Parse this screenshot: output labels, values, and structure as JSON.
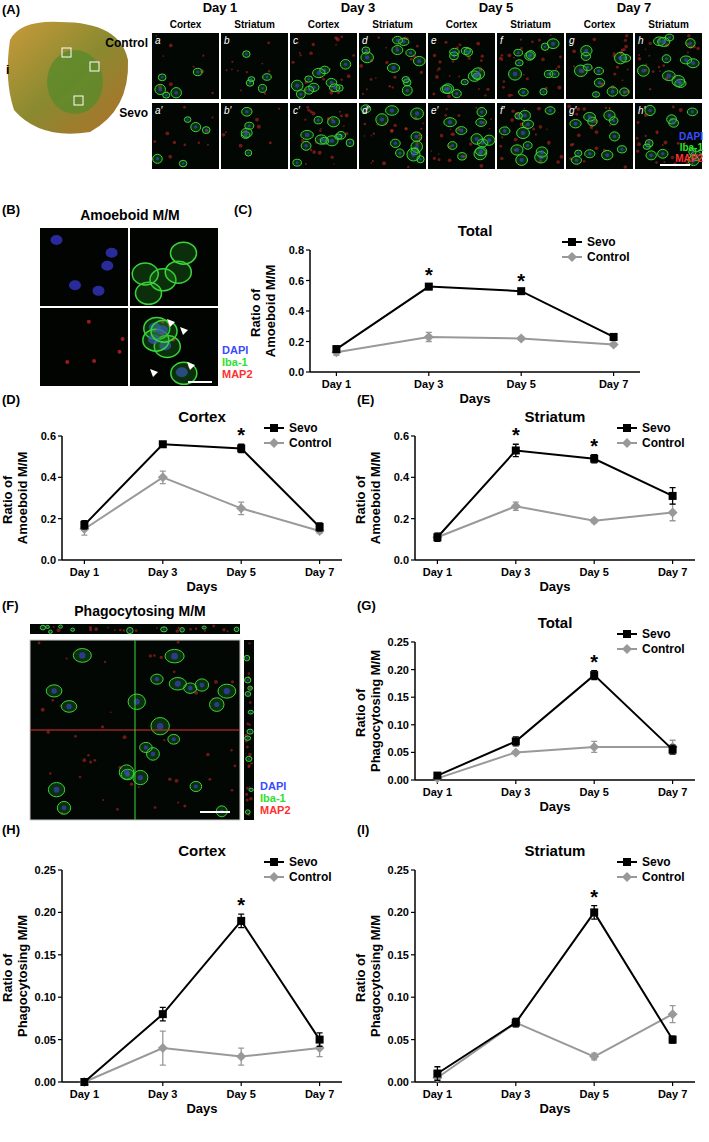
{
  "chart_data": [
    {
      "panel_label": "(C)",
      "type": "line",
      "title": "Total",
      "x_label": "Days",
      "y_label": "Ratio of Amoeboid M/M",
      "categories": [
        "Day 1",
        "Day 3",
        "Day 5",
        "Day 7"
      ],
      "ylim": [
        0,
        0.8
      ],
      "yticks": [
        {
          "value": 0,
          "label": "0.0"
        },
        0.2,
        0.4,
        0.6,
        0.8
      ],
      "legend": "top-right",
      "series": [
        {
          "name": "Sevo",
          "color": "#000000",
          "marker": "square",
          "values": [
            0.15,
            0.56,
            0.53,
            0.23
          ],
          "errors": [
            0.02,
            0.02,
            0.01,
            0.02
          ]
        },
        {
          "name": "Control",
          "color": "#999999",
          "marker": "diamond",
          "values": [
            0.13,
            0.23,
            0.22,
            0.18
          ],
          "errors": [
            0.02,
            0.03,
            0.01,
            0.01
          ]
        }
      ],
      "annotations": [
        {
          "x": "Day 3",
          "text": "*"
        },
        {
          "x": "Day 5",
          "text": "*"
        }
      ]
    },
    {
      "panel_label": "(D)",
      "type": "line",
      "title": "Cortex",
      "x_label": "Days",
      "y_label": "Ratio of Amoeboid M/M",
      "categories": [
        "Day 1",
        "Day 3",
        "Day 5",
        "Day 7"
      ],
      "ylim": [
        0,
        0.6
      ],
      "yticks": [
        {
          "value": 0,
          "label": "0.0"
        },
        0.2,
        0.4,
        0.6
      ],
      "legend": "top-right",
      "series": [
        {
          "name": "Sevo",
          "color": "#000000",
          "marker": "square",
          "values": [
            0.17,
            0.56,
            0.54,
            0.16
          ],
          "errors": [
            0.02,
            0.01,
            0.02,
            0.02
          ]
        },
        {
          "name": "Control",
          "color": "#999999",
          "marker": "diamond",
          "values": [
            0.15,
            0.4,
            0.25,
            0.14
          ],
          "errors": [
            0.03,
            0.03,
            0.03,
            0.01
          ]
        }
      ],
      "annotations": [
        {
          "x": "Day 5",
          "text": "*"
        }
      ]
    },
    {
      "panel_label": "(E)",
      "type": "line",
      "title": "Striatum",
      "x_label": "Days",
      "y_label": "Ratio of Amoeboid M/M",
      "categories": [
        "Day 1",
        "Day 3",
        "Day 5",
        "Day 7"
      ],
      "ylim": [
        0,
        0.6
      ],
      "yticks": [
        {
          "value": 0,
          "label": "0.0"
        },
        0.2,
        0.4,
        0.6
      ],
      "legend": "top-right",
      "series": [
        {
          "name": "Sevo",
          "color": "#000000",
          "marker": "square",
          "values": [
            0.11,
            0.53,
            0.49,
            0.31
          ],
          "errors": [
            0.02,
            0.03,
            0.02,
            0.04
          ]
        },
        {
          "name": "Control",
          "color": "#999999",
          "marker": "diamond",
          "values": [
            0.11,
            0.26,
            0.19,
            0.23
          ],
          "errors": [
            0.02,
            0.02,
            0.01,
            0.04
          ]
        }
      ],
      "annotations": [
        {
          "x": "Day 3",
          "text": "*"
        },
        {
          "x": "Day 5",
          "text": "*"
        }
      ]
    },
    {
      "panel_label": "(G)",
      "type": "line",
      "title": "Total",
      "x_label": "Days",
      "y_label": "Ratio of Phagocytosing M/M",
      "categories": [
        "Day 1",
        "Day 3",
        "Day 5",
        "Day 7"
      ],
      "ylim": [
        0,
        0.25
      ],
      "yticks": [
        {
          "value": 0,
          "label": "0.00"
        },
        0.05,
        {
          "value": 0.1,
          "label": "0.10"
        },
        0.15,
        {
          "value": 0.2,
          "label": "0.20"
        },
        0.25
      ],
      "legend": "top-right",
      "series": [
        {
          "name": "Sevo",
          "color": "#000000",
          "marker": "square",
          "values": [
            0.008,
            0.07,
            0.19,
            0.055
          ],
          "errors": [
            0.003,
            0.008,
            0.008,
            0.008
          ]
        },
        {
          "name": "Control",
          "color": "#999999",
          "marker": "diamond",
          "values": [
            0.003,
            0.05,
            0.06,
            0.06
          ],
          "errors": [
            0.002,
            0.003,
            0.01,
            0.012
          ]
        }
      ],
      "annotations": [
        {
          "x": "Day 5",
          "text": "*"
        }
      ]
    },
    {
      "panel_label": "(H)",
      "type": "line",
      "title": "Cortex",
      "x_label": "Days",
      "y_label": "Ratio of Phagocytosing M/M",
      "categories": [
        "Day 1",
        "Day 3",
        "Day 5",
        "Day 7"
      ],
      "ylim": [
        0,
        0.25
      ],
      "yticks": [
        {
          "value": 0,
          "label": "0.00"
        },
        0.05,
        {
          "value": 0.1,
          "label": "0.10"
        },
        0.15,
        {
          "value": 0.2,
          "label": "0.20"
        },
        0.25
      ],
      "legend": "top-right",
      "series": [
        {
          "name": "Sevo",
          "color": "#000000",
          "marker": "square",
          "values": [
            0,
            0.08,
            0.19,
            0.05
          ],
          "errors": [
            0.002,
            0.008,
            0.008,
            0.008
          ]
        },
        {
          "name": "Control",
          "color": "#999999",
          "marker": "diamond",
          "values": [
            0,
            0.04,
            0.03,
            0.04
          ],
          "errors": [
            0.002,
            0.02,
            0.01,
            0.01
          ]
        }
      ],
      "annotations": [
        {
          "x": "Day 5",
          "text": "*"
        }
      ]
    },
    {
      "panel_label": "(I)",
      "type": "line",
      "title": "Striatum",
      "x_label": "Days",
      "y_label": "Ratio of Phagocytosing M/M",
      "categories": [
        "Day 1",
        "Day 3",
        "Day 5",
        "Day 7"
      ],
      "ylim": [
        0,
        0.25
      ],
      "yticks": [
        {
          "value": 0,
          "label": "0.00"
        },
        0.05,
        {
          "value": 0.1,
          "label": "0.10"
        },
        0.15,
        {
          "value": 0.2,
          "label": "0.20"
        },
        0.25
      ],
      "legend": "top-right",
      "series": [
        {
          "name": "Sevo",
          "color": "#000000",
          "marker": "square",
          "values": [
            0.01,
            0.07,
            0.2,
            0.05
          ],
          "errors": [
            0.008,
            0.005,
            0.008,
            0.004
          ]
        },
        {
          "name": "Control",
          "color": "#999999",
          "marker": "diamond",
          "values": [
            0.005,
            0.07,
            0.03,
            0.08
          ],
          "errors": [
            0.003,
            0.005,
            0.004,
            0.01
          ]
        }
      ],
      "annotations": [
        {
          "x": "Day 5",
          "text": "*"
        }
      ]
    }
  ],
  "images": {
    "A": {
      "label": "(A)",
      "overview_label": "i",
      "days": [
        "Day 1",
        "Day 3",
        "Day 5",
        "Day 7"
      ],
      "regions": [
        "Cortex",
        "Striatum"
      ],
      "rows": [
        "Control",
        "Sevo"
      ],
      "tiles": [
        [
          "a",
          "b",
          "c",
          "d",
          "e",
          "f",
          "g",
          "h"
        ],
        [
          "a′",
          "b′",
          "c′",
          "d′",
          "e′",
          "f′",
          "g′",
          "h′"
        ]
      ],
      "channels": [
        "DAPI",
        "Iba-1",
        "MAP2"
      ]
    },
    "B": {
      "label": "(B)",
      "title": "Amoeboid M/M",
      "channels": [
        "DAPI",
        "Iba-1",
        "MAP2"
      ]
    },
    "F": {
      "label": "(F)",
      "title": "Phagocytosing M/M",
      "channels": [
        "DAPI",
        "Iba-1",
        "MAP2"
      ]
    }
  }
}
